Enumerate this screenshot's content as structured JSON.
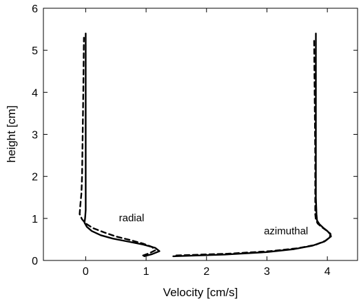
{
  "chart_data": {
    "type": "line",
    "title": "",
    "xlabel": "Velocity [cm/s]",
    "ylabel": "height [cm]",
    "xlim": [
      -0.7,
      4.5
    ],
    "ylim": [
      0,
      6
    ],
    "xticks": [
      0,
      1,
      2,
      3,
      4
    ],
    "yticks": [
      0,
      1,
      2,
      3,
      4,
      5,
      6
    ],
    "grid": false,
    "annotations": [
      {
        "text": "radial",
        "x": 0.55,
        "y": 0.93
      },
      {
        "text": "azimuthal",
        "x": 2.95,
        "y": 0.62
      }
    ],
    "series": [
      {
        "style": "solid",
        "x": [
          0.97,
          1.1,
          1.22,
          1.15,
          0.95,
          0.7,
          0.45,
          0.25,
          0.1,
          0.02,
          -0.02,
          -0.01,
          0.0,
          0.0,
          0.0,
          0.0,
          0.0,
          0.0
        ],
        "y": [
          0.1,
          0.15,
          0.22,
          0.3,
          0.38,
          0.45,
          0.52,
          0.6,
          0.7,
          0.8,
          0.9,
          1.0,
          1.2,
          1.5,
          2.0,
          3.0,
          4.0,
          5.4
        ]
      },
      {
        "style": "dashed",
        "x": [
          0.95,
          1.05,
          1.15,
          1.1,
          0.95,
          0.75,
          0.5,
          0.3,
          0.12,
          0.0,
          -0.06,
          -0.1,
          -0.09,
          -0.07,
          -0.06,
          -0.05,
          -0.04,
          -0.03
        ],
        "y": [
          0.12,
          0.17,
          0.24,
          0.32,
          0.4,
          0.48,
          0.57,
          0.67,
          0.77,
          0.88,
          0.98,
          1.1,
          1.3,
          1.6,
          2.0,
          3.0,
          4.0,
          5.3
        ]
      },
      {
        "style": "solid",
        "x": [
          1.45,
          2.3,
          3.0,
          3.45,
          3.75,
          3.95,
          4.04,
          4.05,
          4.0,
          3.93,
          3.87,
          3.83,
          3.82,
          3.81,
          3.81,
          3.81,
          3.81
        ],
        "y": [
          0.1,
          0.14,
          0.2,
          0.27,
          0.35,
          0.45,
          0.55,
          0.62,
          0.7,
          0.78,
          0.86,
          0.95,
          1.1,
          1.5,
          2.5,
          4.0,
          5.4
        ]
      },
      {
        "style": "dashed",
        "x": [
          1.5,
          2.35,
          3.05,
          3.5,
          3.8,
          3.97,
          4.06,
          4.05,
          3.98,
          3.9,
          3.84,
          3.81,
          3.8,
          3.8,
          3.8,
          3.79,
          3.78
        ],
        "y": [
          0.12,
          0.16,
          0.22,
          0.29,
          0.37,
          0.47,
          0.57,
          0.64,
          0.72,
          0.8,
          0.88,
          0.97,
          1.1,
          1.5,
          2.5,
          4.0,
          5.3
        ]
      }
    ]
  }
}
